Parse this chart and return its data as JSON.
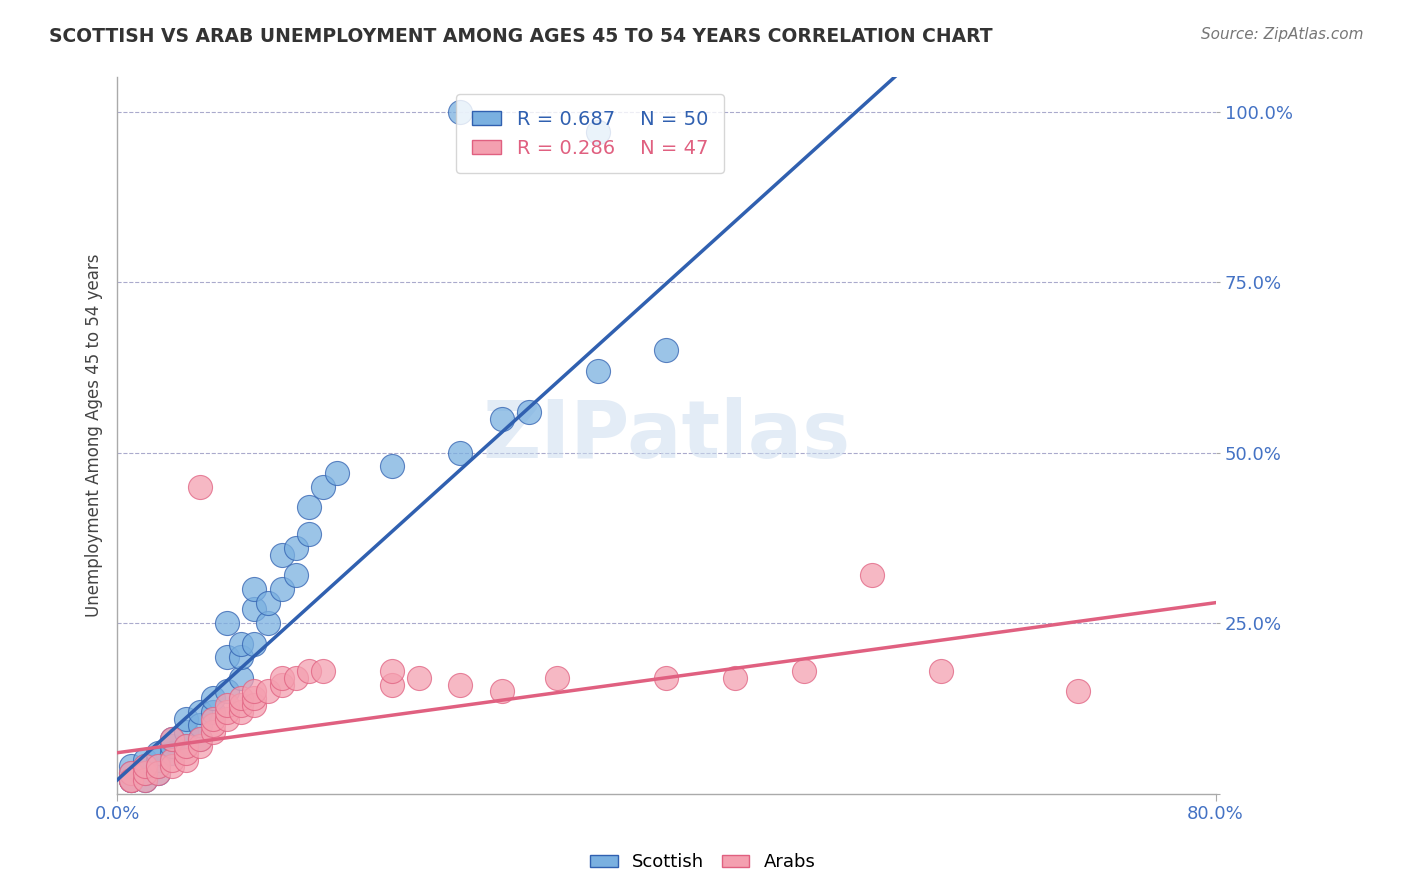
{
  "title": "SCOTTISH VS ARAB UNEMPLOYMENT AMONG AGES 45 TO 54 YEARS CORRELATION CHART",
  "source": "Source: ZipAtlas.com",
  "ylabel": "Unemployment Among Ages 45 to 54 years",
  "xlim": [
    0.0,
    0.8
  ],
  "ylim": [
    0.0,
    1.05
  ],
  "grid_color": "#aaaacc",
  "background_color": "#ffffff",
  "legend_R1": "R = 0.687",
  "legend_N1": "N = 50",
  "legend_R2": "R = 0.286",
  "legend_N2": "N = 47",
  "scottish_color": "#7ab0e0",
  "arab_color": "#f4a0b0",
  "scottish_line_color": "#3060b0",
  "arab_line_color": "#e06080",
  "sc_slope": 1.82,
  "sc_intercept": 0.02,
  "ar_slope": 0.275,
  "ar_intercept": 0.06,
  "scottish_points": [
    [
      0.01,
      0.02
    ],
    [
      0.01,
      0.03
    ],
    [
      0.01,
      0.02
    ],
    [
      0.01,
      0.04
    ],
    [
      0.02,
      0.02
    ],
    [
      0.02,
      0.03
    ],
    [
      0.02,
      0.04
    ],
    [
      0.02,
      0.05
    ],
    [
      0.03,
      0.03
    ],
    [
      0.03,
      0.04
    ],
    [
      0.03,
      0.05
    ],
    [
      0.03,
      0.06
    ],
    [
      0.04,
      0.06
    ],
    [
      0.04,
      0.07
    ],
    [
      0.04,
      0.08
    ],
    [
      0.05,
      0.07
    ],
    [
      0.05,
      0.09
    ],
    [
      0.05,
      0.11
    ],
    [
      0.06,
      0.08
    ],
    [
      0.06,
      0.1
    ],
    [
      0.06,
      0.12
    ],
    [
      0.07,
      0.12
    ],
    [
      0.07,
      0.14
    ],
    [
      0.08,
      0.15
    ],
    [
      0.08,
      0.2
    ],
    [
      0.08,
      0.25
    ],
    [
      0.09,
      0.17
    ],
    [
      0.09,
      0.2
    ],
    [
      0.09,
      0.22
    ],
    [
      0.1,
      0.22
    ],
    [
      0.1,
      0.27
    ],
    [
      0.1,
      0.3
    ],
    [
      0.11,
      0.25
    ],
    [
      0.11,
      0.28
    ],
    [
      0.12,
      0.3
    ],
    [
      0.12,
      0.35
    ],
    [
      0.13,
      0.32
    ],
    [
      0.13,
      0.36
    ],
    [
      0.14,
      0.38
    ],
    [
      0.14,
      0.42
    ],
    [
      0.15,
      0.45
    ],
    [
      0.16,
      0.47
    ],
    [
      0.2,
      0.48
    ],
    [
      0.25,
      0.5
    ],
    [
      0.28,
      0.55
    ],
    [
      0.3,
      0.56
    ],
    [
      0.35,
      0.62
    ],
    [
      0.4,
      0.65
    ],
    [
      0.35,
      0.97
    ],
    [
      0.25,
      1.0
    ]
  ],
  "arab_points": [
    [
      0.01,
      0.02
    ],
    [
      0.01,
      0.03
    ],
    [
      0.01,
      0.02
    ],
    [
      0.02,
      0.02
    ],
    [
      0.02,
      0.03
    ],
    [
      0.02,
      0.04
    ],
    [
      0.03,
      0.03
    ],
    [
      0.03,
      0.04
    ],
    [
      0.04,
      0.04
    ],
    [
      0.04,
      0.05
    ],
    [
      0.04,
      0.08
    ],
    [
      0.05,
      0.05
    ],
    [
      0.05,
      0.06
    ],
    [
      0.05,
      0.07
    ],
    [
      0.06,
      0.07
    ],
    [
      0.06,
      0.08
    ],
    [
      0.06,
      0.45
    ],
    [
      0.07,
      0.09
    ],
    [
      0.07,
      0.1
    ],
    [
      0.07,
      0.11
    ],
    [
      0.08,
      0.11
    ],
    [
      0.08,
      0.12
    ],
    [
      0.08,
      0.13
    ],
    [
      0.09,
      0.12
    ],
    [
      0.09,
      0.13
    ],
    [
      0.09,
      0.14
    ],
    [
      0.1,
      0.13
    ],
    [
      0.1,
      0.14
    ],
    [
      0.1,
      0.15
    ],
    [
      0.11,
      0.15
    ],
    [
      0.12,
      0.16
    ],
    [
      0.12,
      0.17
    ],
    [
      0.13,
      0.17
    ],
    [
      0.14,
      0.18
    ],
    [
      0.15,
      0.18
    ],
    [
      0.2,
      0.16
    ],
    [
      0.2,
      0.18
    ],
    [
      0.22,
      0.17
    ],
    [
      0.25,
      0.16
    ],
    [
      0.28,
      0.15
    ],
    [
      0.32,
      0.17
    ],
    [
      0.4,
      0.17
    ],
    [
      0.45,
      0.17
    ],
    [
      0.5,
      0.18
    ],
    [
      0.55,
      0.32
    ],
    [
      0.6,
      0.18
    ],
    [
      0.7,
      0.15
    ]
  ]
}
